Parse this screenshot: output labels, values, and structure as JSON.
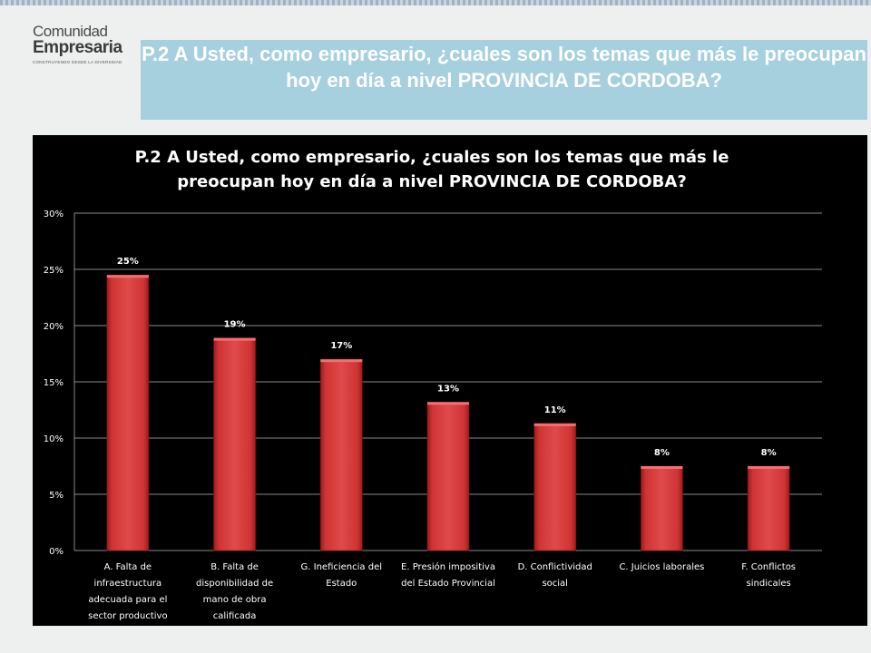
{
  "logo": {
    "line1": "Comunidad",
    "line2": "Empresaria",
    "tagline": "CONSTRUYENDO DESDE LA DIVERSIDAD"
  },
  "header": {
    "title": "P.2 A Usted, como empresario, ¿cuales son los temas que más le preocupan hoy en día a nivel PROVINCIA DE CORDOBA?"
  },
  "colors": {
    "bar": "#d63c3c",
    "bar_dark": "#a31f1f",
    "banner": "#a6d0dd",
    "panel": "#000000"
  },
  "chart_data": {
    "type": "bar",
    "title": "P.2 A Usted, como empresario, ¿cuales son los temas que más le preocupan hoy en día a nivel PROVINCIA DE CORDOBA?",
    "categories": [
      "A. Falta de infraestructura adecuada para el sector productivo",
      "B. Falta de disponibilidad de mano de obra calificada",
      "G. Ineficiencia del Estado",
      "E. Presión impositiva del Estado Provincial",
      "D. Conflictividad social",
      "C. Juicios laborales",
      "F. Conflictos sindicales"
    ],
    "category_lines": [
      [
        "A. Falta de",
        "infraestructura",
        "adecuada para el",
        "sector productivo"
      ],
      [
        "B. Falta de",
        "disponibilidad de",
        "mano de obra",
        "calificada"
      ],
      [
        "G. Ineficiencia del",
        "Estado"
      ],
      [
        "E. Presión impositiva",
        "del Estado Provincial"
      ],
      [
        "D. Conflictividad",
        "social"
      ],
      [
        "C. Juicios laborales"
      ],
      [
        "F. Conflictos",
        "sindicales"
      ]
    ],
    "values": [
      24.5,
      18.9,
      17.0,
      13.2,
      11.3,
      7.5,
      7.5
    ],
    "data_labels": [
      "25%",
      "19%",
      "17%",
      "13%",
      "11%",
      "8%",
      "8%"
    ],
    "yticks": [
      "0%",
      "5%",
      "10%",
      "15%",
      "20%",
      "25%",
      "30%"
    ],
    "ylim": [
      0,
      30
    ],
    "xlabel": "",
    "ylabel": "",
    "grid": true
  }
}
